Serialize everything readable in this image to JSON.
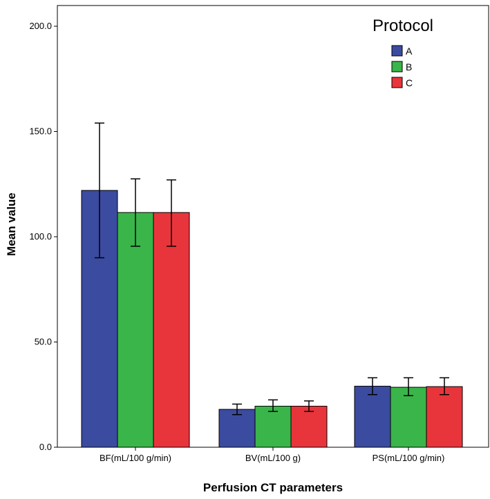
{
  "chart_data": {
    "type": "bar",
    "xlabel": "Perfusion CT parameters",
    "ylabel": "Mean value",
    "ylim": [
      0,
      200
    ],
    "yticks": [
      0,
      50,
      100,
      150,
      200
    ],
    "ytick_labels": [
      "0.0",
      "50.0",
      "100.0",
      "150.0",
      "200.0"
    ],
    "categories": [
      "BF(mL/100 g/min)",
      "BV(mL/100 g)",
      "PS(mL/100 g/min)"
    ],
    "legend_title": "Protocol",
    "legend_position": "top-right",
    "series": [
      {
        "name": "A",
        "color": "#3B4BA0",
        "values": [
          122,
          18,
          29
        ],
        "err_low": [
          90,
          15.5,
          25
        ],
        "err_high": [
          154,
          20.5,
          33
        ]
      },
      {
        "name": "B",
        "color": "#3AB54A",
        "values": [
          111.5,
          19.5,
          28.5
        ],
        "err_low": [
          95.5,
          17,
          24.5
        ],
        "err_high": [
          127.5,
          22.5,
          33
        ]
      },
      {
        "name": "C",
        "color": "#E8353B",
        "values": [
          111.5,
          19.5,
          28.8
        ],
        "err_low": [
          95.5,
          17,
          25
        ],
        "err_high": [
          127,
          22,
          33
        ]
      }
    ]
  }
}
